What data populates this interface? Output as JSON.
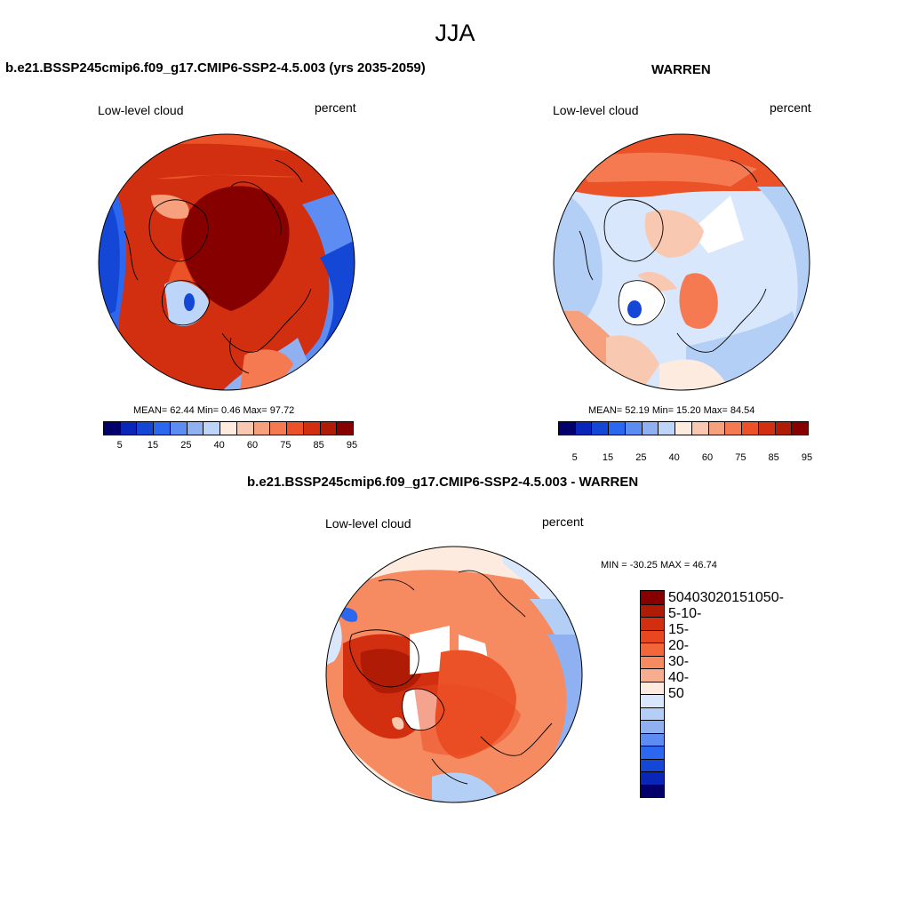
{
  "figure": {
    "title": "JJA"
  },
  "panels": [
    {
      "title": "b.e21.BSSP245cmip6.f09_g17.CMIP6-SSP2-4.5.003 (yrs 2035-2059)",
      "left_label": "Low-level cloud",
      "right_label": "percent",
      "stats": "MEAN=  62.44  Min=   0.46  Max=  97.72"
    },
    {
      "title": "WARREN",
      "left_label": "Low-level cloud",
      "right_label": "percent",
      "stats": "MEAN=  52.19  Min=  15.20  Max=  84.54"
    },
    {
      "title": "b.e21.BSSP245cmip6.f09_g17.CMIP6-SSP2-4.5.003 - WARREN",
      "left_label": "Low-level cloud",
      "right_label": "percent",
      "stats": "MIN = -30.25 MAX =  46.74"
    }
  ],
  "colorbars": {
    "abs": {
      "colors": [
        "#03006c",
        "#0a26b8",
        "#1547d6",
        "#2c68ef",
        "#5d8df2",
        "#8fb1f2",
        "#bdd5f8",
        "#fcebde",
        "#f9c8b0",
        "#f6a07e",
        "#f57a52",
        "#eb5227",
        "#d12f10",
        "#b01b05",
        "#870000"
      ],
      "tick_labels": [
        "5",
        "15",
        "25",
        "40",
        "60",
        "75",
        "85",
        "95"
      ]
    },
    "diff": {
      "colors": [
        "#870000",
        "#b01b05",
        "#d12f10",
        "#e94720",
        "#f36639",
        "#f68a60",
        "#f7ad8f",
        "#fcebde",
        "#d8e7fb",
        "#b4cff5",
        "#8fb1f2",
        "#5d8df2",
        "#2c68ef",
        "#1547d6",
        "#0a26b8",
        "#03006c"
      ],
      "tick_labels": [
        "50",
        "40",
        "30",
        "20",
        "15",
        "10",
        "5",
        "0",
        "-5",
        "-10",
        "-15",
        "-20",
        "-30",
        "-40",
        "-50"
      ]
    }
  },
  "map_colors": {
    "dark_red": "#870000",
    "red": "#d12f10",
    "orange_red": "#eb5227",
    "orange": "#f57a52",
    "salmon": "#f6a07e",
    "peach": "#f9c8b0",
    "cream": "#fcebde",
    "pale_blue": "#d8e7fb",
    "light_blue": "#b4cff5",
    "blue": "#5d8df2",
    "deep_blue": "#1547d6",
    "coast": "#000000"
  }
}
